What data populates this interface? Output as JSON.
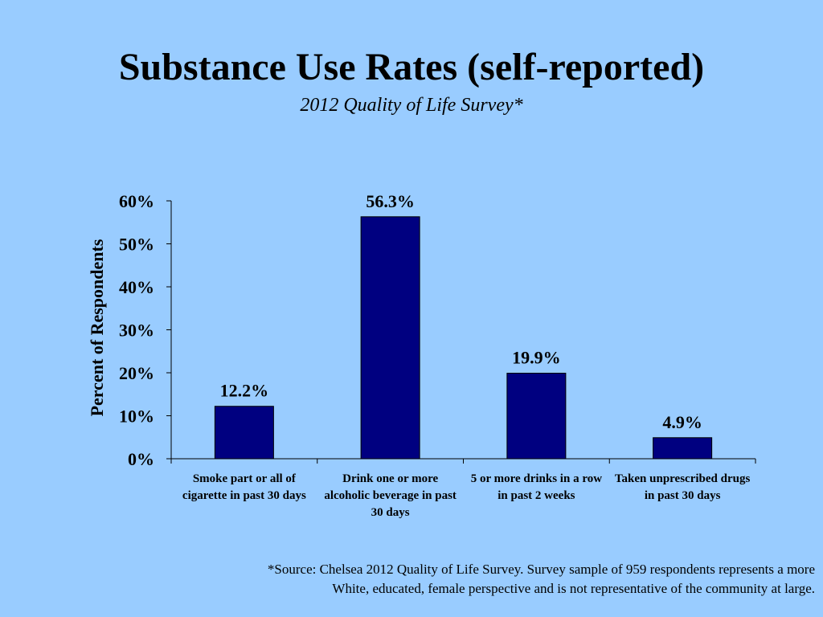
{
  "slide": {
    "title": "Substance Use Rates (self-reported)",
    "subtitle": "2012 Quality of Life Survey*",
    "footnote": "*Source: Chelsea 2012 Quality of Life Survey. Survey sample of 959 respondents represents a more White, educated, female perspective and is not representative of the community at large."
  },
  "colors": {
    "background": "#99CCFF",
    "bar": "#000080"
  },
  "chart_data": {
    "type": "bar",
    "categories": [
      "Smoke part or all of cigarette in past 30 days",
      "Drink one or more alcoholic beverage in past 30 days",
      "5 or more drinks in a row in past 2 weeks",
      "Taken unprescribed drugs in past 30 days"
    ],
    "values": [
      12.2,
      56.3,
      19.9,
      4.9
    ],
    "data_labels": [
      "12.2%",
      "56.3%",
      "19.9%",
      "4.9%"
    ],
    "ylabel": "Percent of Respondents",
    "yticks": [
      "0%",
      "10%",
      "20%",
      "30%",
      "40%",
      "50%",
      "60%"
    ],
    "ylim": [
      0,
      60
    ],
    "grid": false,
    "legend": "none"
  }
}
